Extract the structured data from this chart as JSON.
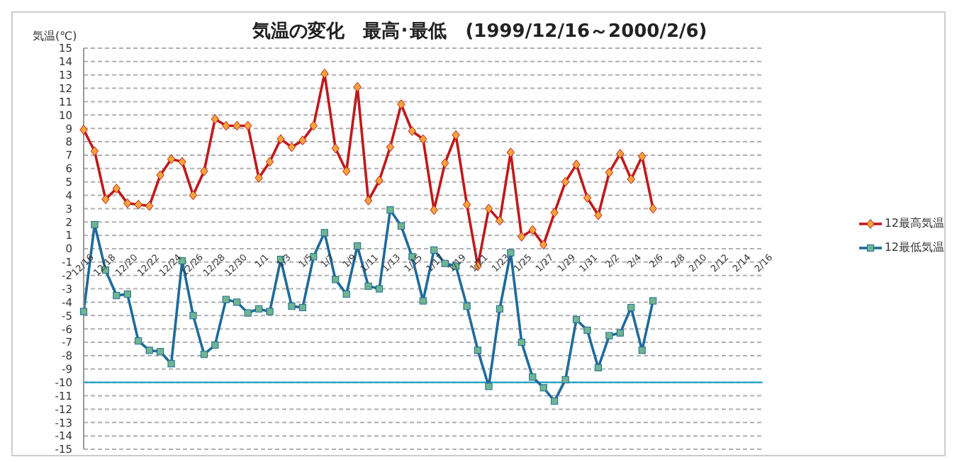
{
  "chart_data": {
    "type": "line",
    "title": "気温の変化　最高･最低　(1999/12/16～2000/2/6)",
    "ylabel": "気温(℃)",
    "categories": [
      "12/16",
      null,
      "12/18",
      null,
      "12/20",
      null,
      "12/22",
      null,
      "12/24",
      null,
      "12/26",
      null,
      "12/28",
      null,
      "12/30",
      null,
      "1/1",
      null,
      "1/3",
      null,
      "1/5",
      null,
      "1/7",
      null,
      "1/9",
      null,
      "1/11",
      null,
      "1/13",
      null,
      "1/15",
      null,
      "1/17",
      null,
      "1/19",
      null,
      "1/21",
      null,
      "1/23",
      null,
      "1/25",
      null,
      "1/27",
      null,
      "1/29",
      null,
      "1/31",
      null,
      "2/2",
      null,
      "2/4",
      null,
      "2/6",
      null,
      "2/8",
      null,
      "2/10",
      null,
      "2/12",
      null,
      "2/14",
      null,
      "2/16"
    ],
    "series": [
      {
        "name": "12最高気温",
        "color": "#c0191b",
        "marker": "diamond",
        "values": [
          8.9,
          7.3,
          3.7,
          4.5,
          3.4,
          3.3,
          3.2,
          5.5,
          6.7,
          6.5,
          4.0,
          5.8,
          9.7,
          9.2,
          9.2,
          9.2,
          5.3,
          6.5,
          8.2,
          7.6,
          8.1,
          9.2,
          13.1,
          7.5,
          5.8,
          12.1,
          3.6,
          5.1,
          7.6,
          10.8,
          8.8,
          8.2,
          2.9,
          6.4,
          8.5,
          3.3,
          -1.3,
          3.0,
          2.1,
          7.2,
          0.9,
          1.4,
          0.3,
          2.7,
          5.0,
          6.3,
          3.8,
          2.5,
          5.7,
          7.1,
          5.2,
          6.9,
          3.0,
          null,
          null,
          null,
          null,
          null,
          null,
          null,
          null,
          null,
          null
        ]
      },
      {
        "name": "12最低気温",
        "color": "#1f6a9a",
        "marker": "square",
        "values": [
          -4.7,
          1.8,
          -1.6,
          -3.5,
          -3.4,
          -6.9,
          -7.6,
          -7.7,
          -8.6,
          -0.9,
          -5.0,
          -7.9,
          -7.2,
          -3.8,
          -4.0,
          -4.8,
          -4.5,
          -4.7,
          -0.8,
          -4.3,
          -4.4,
          -0.6,
          1.2,
          -2.3,
          -3.4,
          0.2,
          -2.8,
          -3.0,
          2.9,
          1.7,
          -0.6,
          -3.9,
          -0.1,
          -1.1,
          -1.3,
          -4.3,
          -7.6,
          -10.3,
          -4.5,
          -0.3,
          -7.0,
          -9.6,
          -10.4,
          -11.4,
          -9.8,
          -5.3,
          -6.1,
          -8.9,
          -6.5,
          -6.3,
          -4.4,
          -7.6,
          -3.9,
          null,
          null,
          null,
          null,
          null,
          null,
          null,
          null,
          null,
          null
        ]
      }
    ],
    "ylim": [
      -15,
      15
    ],
    "yticks": [
      -15,
      -14,
      -13,
      -12,
      -11,
      -10,
      -9,
      -8,
      -7,
      -6,
      -5,
      -4,
      -3,
      -2,
      -1,
      0,
      1,
      2,
      3,
      4,
      5,
      6,
      7,
      8,
      9,
      10,
      11,
      12,
      13,
      14,
      15
    ],
    "ref_lines": [
      {
        "axis": "y",
        "value": -10,
        "color": "#1ba1c6"
      }
    ],
    "grid": "y",
    "legend": "right",
    "line_style": "solid"
  }
}
